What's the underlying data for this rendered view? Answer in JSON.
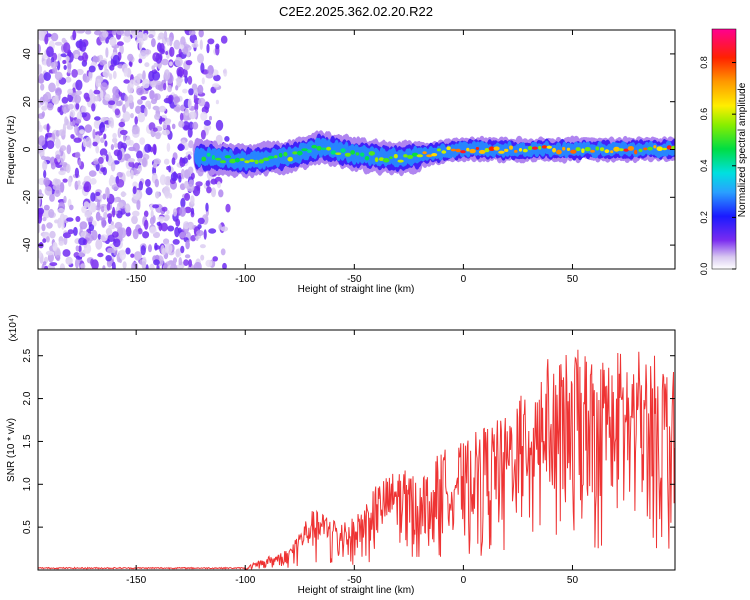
{
  "title": "C2E2.2025.362.02.20.R22",
  "chart_data": [
    {
      "type": "heatmap",
      "xlabel": "Height of straight line (km)",
      "ylabel": "Frequency (Hz)",
      "xlim": [
        -195,
        97
      ],
      "ylim": [
        -50,
        50
      ],
      "x_ticks": [
        -150,
        -100,
        -50,
        0,
        50
      ],
      "y_ticks": [
        -40,
        -20,
        0,
        20,
        40
      ],
      "colorbar": {
        "label": "Normalized spectral amplitude",
        "range": [
          0.0,
          0.93
        ],
        "ticks": [
          0.0,
          0.2,
          0.4,
          0.6,
          0.8
        ],
        "colormap": "rainbow (white-purple-blue-cyan-green-yellow-red-magenta)"
      },
      "features": [
        {
          "region": "noise",
          "x_range": [
            -195,
            -110
          ],
          "y_range": [
            -50,
            50
          ],
          "amplitude": [
            0.0,
            0.1
          ]
        },
        {
          "region": "signal",
          "x_range": [
            -122,
            97
          ],
          "center_frequency_hz": 0,
          "frequency_trend": [
            [
              -120,
              -3
            ],
            [
              -100,
              -5
            ],
            [
              -80,
              -3
            ],
            [
              -65,
              1
            ],
            [
              -50,
              -2
            ],
            [
              -30,
              -4
            ],
            [
              -10,
              -1
            ],
            [
              0,
              0
            ],
            [
              50,
              0
            ],
            [
              97,
              0
            ]
          ],
          "peak_amplitude": 0.9
        }
      ]
    },
    {
      "type": "line",
      "xlabel": "Height of straight line (km)",
      "ylabel": "SNR (10 * v/v)",
      "y_multiplier": "(x10⁴)",
      "xlim": [
        -195,
        97
      ],
      "ylim": [
        0,
        2.8
      ],
      "x_ticks": [
        -150,
        -100,
        -50,
        0,
        50
      ],
      "y_ticks": [
        0.5,
        1.0,
        1.5,
        2.0,
        2.5
      ],
      "series": [
        {
          "color": "#ee3333",
          "envelope": [
            [
              -195,
              0.02
            ],
            [
              -100,
              0.02
            ],
            [
              -95,
              0.1
            ],
            [
              -80,
              0.25
            ],
            [
              -70,
              0.7
            ],
            [
              -50,
              0.6
            ],
            [
              -40,
              1.0
            ],
            [
              -30,
              1.2
            ],
            [
              -20,
              1.1
            ],
            [
              -10,
              1.4
            ],
            [
              0,
              1.5
            ],
            [
              10,
              1.7
            ],
            [
              20,
              1.8
            ],
            [
              30,
              2.3
            ],
            [
              40,
              2.5
            ],
            [
              50,
              2.6
            ],
            [
              60,
              2.5
            ],
            [
              75,
              2.6
            ],
            [
              90,
              2.5
            ],
            [
              97,
              2.3
            ]
          ]
        }
      ]
    }
  ],
  "colors": {
    "line": "#ee3333",
    "axis": "#000000"
  }
}
